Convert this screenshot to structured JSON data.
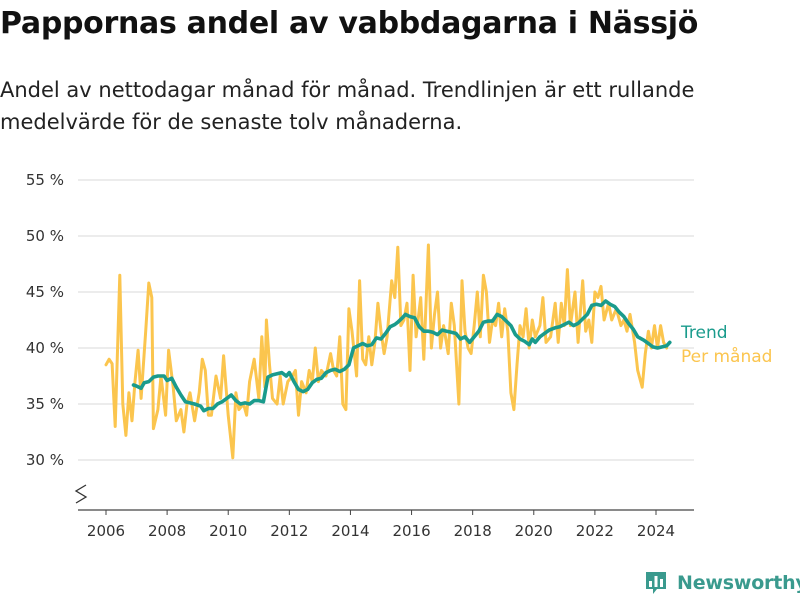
{
  "header": {
    "title": "Pappornas andel av vabbdagarna i Nässjö",
    "subtitle": "Andel av nettodagar månad för månad. Trendlinjen är ett rullande medelvärde för de senaste tolv månaderna."
  },
  "brand": {
    "name": "Newsworthy",
    "color": "#3a9a8e",
    "icon": "bar-chart-pin-icon"
  },
  "chart_data": {
    "type": "line",
    "x_unit": "year",
    "y_unit": "%",
    "ylim": [
      25,
      55
    ],
    "xlim": [
      2005.6,
      2025.1
    ],
    "y_ticks": [
      {
        "value": 30,
        "label": "30 %"
      },
      {
        "value": 35,
        "label": "35 %"
      },
      {
        "value": 40,
        "label": "40 %"
      },
      {
        "value": 45,
        "label": "45 %"
      },
      {
        "value": 50,
        "label": "50 %"
      },
      {
        "value": 55,
        "label": "55 %"
      }
    ],
    "x_ticks": [
      {
        "value": 2006,
        "label": "2006"
      },
      {
        "value": 2008,
        "label": "2008"
      },
      {
        "value": 2010,
        "label": "2010"
      },
      {
        "value": 2012,
        "label": "2012"
      },
      {
        "value": 2014,
        "label": "2014"
      },
      {
        "value": 2016,
        "label": "2016"
      },
      {
        "value": 2018,
        "label": "2018"
      },
      {
        "value": 2020,
        "label": "2020"
      },
      {
        "value": 2022,
        "label": "2022"
      },
      {
        "value": 2024,
        "label": "2024"
      }
    ],
    "grid": true,
    "axis_break": true,
    "series": [
      {
        "name": "Per månad",
        "color": "#fbc54e",
        "points": [
          [
            2006.0,
            38.5
          ],
          [
            2006.1,
            39.0
          ],
          [
            2006.2,
            38.6
          ],
          [
            2006.3,
            33.0
          ],
          [
            2006.45,
            46.5
          ],
          [
            2006.55,
            35.0
          ],
          [
            2006.65,
            32.2
          ],
          [
            2006.75,
            36.0
          ],
          [
            2006.85,
            33.5
          ],
          [
            2006.95,
            37.0
          ],
          [
            2007.05,
            39.8
          ],
          [
            2007.15,
            35.5
          ],
          [
            2007.3,
            41.5
          ],
          [
            2007.4,
            45.8
          ],
          [
            2007.5,
            44.5
          ],
          [
            2007.55,
            32.8
          ],
          [
            2007.7,
            34.5
          ],
          [
            2007.8,
            37.5
          ],
          [
            2007.95,
            34.0
          ],
          [
            2008.05,
            39.8
          ],
          [
            2008.2,
            36.5
          ],
          [
            2008.3,
            33.5
          ],
          [
            2008.45,
            34.5
          ],
          [
            2008.55,
            32.5
          ],
          [
            2008.65,
            35.0
          ],
          [
            2008.75,
            36.0
          ],
          [
            2008.9,
            33.5
          ],
          [
            2009.05,
            36.0
          ],
          [
            2009.15,
            39.0
          ],
          [
            2009.25,
            38.0
          ],
          [
            2009.35,
            34.0
          ],
          [
            2009.45,
            34.0
          ],
          [
            2009.6,
            37.5
          ],
          [
            2009.75,
            35.5
          ],
          [
            2009.85,
            39.3
          ],
          [
            2010.0,
            34.0
          ],
          [
            2010.15,
            30.2
          ],
          [
            2010.25,
            36.0
          ],
          [
            2010.35,
            34.5
          ],
          [
            2010.5,
            35.0
          ],
          [
            2010.6,
            34.0
          ],
          [
            2010.7,
            37.0
          ],
          [
            2010.85,
            39.0
          ],
          [
            2011.0,
            35.5
          ],
          [
            2011.1,
            41.0
          ],
          [
            2011.2,
            36.5
          ],
          [
            2011.25,
            42.5
          ],
          [
            2011.35,
            38.5
          ],
          [
            2011.45,
            35.5
          ],
          [
            2011.6,
            35.0
          ],
          [
            2011.7,
            37.5
          ],
          [
            2011.8,
            35.0
          ],
          [
            2011.95,
            37.0
          ],
          [
            2012.1,
            37.5
          ],
          [
            2012.2,
            38.0
          ],
          [
            2012.3,
            34.0
          ],
          [
            2012.4,
            37.0
          ],
          [
            2012.55,
            36.0
          ],
          [
            2012.65,
            38.0
          ],
          [
            2012.75,
            37.0
          ],
          [
            2012.85,
            40.0
          ],
          [
            2012.95,
            37.0
          ],
          [
            2013.05,
            38.0
          ],
          [
            2013.2,
            37.5
          ],
          [
            2013.35,
            39.5
          ],
          [
            2013.45,
            38.0
          ],
          [
            2013.55,
            37.5
          ],
          [
            2013.65,
            41.0
          ],
          [
            2013.75,
            35.0
          ],
          [
            2013.85,
            34.5
          ],
          [
            2013.95,
            43.5
          ],
          [
            2014.05,
            41.5
          ],
          [
            2014.2,
            37.5
          ],
          [
            2014.3,
            46.0
          ],
          [
            2014.4,
            39.0
          ],
          [
            2014.5,
            38.5
          ],
          [
            2014.6,
            41.0
          ],
          [
            2014.7,
            38.5
          ],
          [
            2014.8,
            40.5
          ],
          [
            2014.9,
            44.0
          ],
          [
            2015.0,
            41.5
          ],
          [
            2015.1,
            39.5
          ],
          [
            2015.2,
            41.0
          ],
          [
            2015.35,
            46.0
          ],
          [
            2015.45,
            44.5
          ],
          [
            2015.55,
            49.0
          ],
          [
            2015.65,
            42.0
          ],
          [
            2015.75,
            42.5
          ],
          [
            2015.85,
            44.0
          ],
          [
            2015.95,
            38.0
          ],
          [
            2016.05,
            46.5
          ],
          [
            2016.15,
            41.0
          ],
          [
            2016.3,
            44.5
          ],
          [
            2016.4,
            39.0
          ],
          [
            2016.55,
            49.2
          ],
          [
            2016.65,
            40.0
          ],
          [
            2016.75,
            43.0
          ],
          [
            2016.85,
            45.0
          ],
          [
            2016.95,
            40.0
          ],
          [
            2017.05,
            42.0
          ],
          [
            2017.2,
            39.5
          ],
          [
            2017.3,
            44.0
          ],
          [
            2017.4,
            42.0
          ],
          [
            2017.55,
            35.0
          ],
          [
            2017.65,
            46.0
          ],
          [
            2017.75,
            41.5
          ],
          [
            2017.85,
            40.0
          ],
          [
            2017.95,
            39.5
          ],
          [
            2018.05,
            42.0
          ],
          [
            2018.15,
            45.0
          ],
          [
            2018.25,
            41.0
          ],
          [
            2018.35,
            46.5
          ],
          [
            2018.45,
            45.0
          ],
          [
            2018.55,
            40.5
          ],
          [
            2018.65,
            42.5
          ],
          [
            2018.75,
            42.0
          ],
          [
            2018.85,
            44.0
          ],
          [
            2018.95,
            41.0
          ],
          [
            2019.05,
            43.5
          ],
          [
            2019.15,
            41.5
          ],
          [
            2019.25,
            36.0
          ],
          [
            2019.35,
            34.5
          ],
          [
            2019.45,
            38.5
          ],
          [
            2019.55,
            42.0
          ],
          [
            2019.65,
            41.0
          ],
          [
            2019.75,
            43.5
          ],
          [
            2019.85,
            40.0
          ],
          [
            2019.95,
            42.5
          ],
          [
            2020.05,
            41.0
          ],
          [
            2020.2,
            42.0
          ],
          [
            2020.3,
            44.5
          ],
          [
            2020.4,
            40.5
          ],
          [
            2020.55,
            41.0
          ],
          [
            2020.7,
            44.0
          ],
          [
            2020.8,
            40.5
          ],
          [
            2020.9,
            44.0
          ],
          [
            2021.0,
            42.0
          ],
          [
            2021.1,
            47.0
          ],
          [
            2021.2,
            42.0
          ],
          [
            2021.35,
            45.0
          ],
          [
            2021.45,
            40.5
          ],
          [
            2021.6,
            46.0
          ],
          [
            2021.7,
            41.5
          ],
          [
            2021.8,
            42.5
          ],
          [
            2021.9,
            40.5
          ],
          [
            2022.0,
            45.0
          ],
          [
            2022.1,
            44.5
          ],
          [
            2022.2,
            45.5
          ],
          [
            2022.3,
            42.5
          ],
          [
            2022.45,
            44.0
          ],
          [
            2022.55,
            42.5
          ],
          [
            2022.7,
            43.5
          ],
          [
            2022.85,
            42.0
          ],
          [
            2022.95,
            42.5
          ],
          [
            2023.05,
            41.5
          ],
          [
            2023.15,
            43.0
          ],
          [
            2023.3,
            40.5
          ],
          [
            2023.4,
            38.0
          ],
          [
            2023.55,
            36.5
          ],
          [
            2023.65,
            39.5
          ],
          [
            2023.75,
            41.5
          ],
          [
            2023.85,
            40.0
          ],
          [
            2023.95,
            42.0
          ],
          [
            2024.05,
            40.0
          ],
          [
            2024.15,
            42.0
          ],
          [
            2024.25,
            40.5
          ],
          [
            2024.35,
            40.0
          ]
        ]
      },
      {
        "name": "Trend",
        "color": "#1a9b8c",
        "points": [
          [
            2006.9,
            36.7
          ],
          [
            2007.0,
            36.6
          ],
          [
            2007.15,
            36.4
          ],
          [
            2007.25,
            36.9
          ],
          [
            2007.4,
            37.0
          ],
          [
            2007.55,
            37.4
          ],
          [
            2007.7,
            37.5
          ],
          [
            2007.9,
            37.5
          ],
          [
            2008.0,
            37.1
          ],
          [
            2008.15,
            37.3
          ],
          [
            2008.3,
            36.5
          ],
          [
            2008.45,
            35.8
          ],
          [
            2008.6,
            35.2
          ],
          [
            2008.75,
            35.1
          ],
          [
            2008.9,
            35.0
          ],
          [
            2009.1,
            34.8
          ],
          [
            2009.2,
            34.4
          ],
          [
            2009.35,
            34.6
          ],
          [
            2009.5,
            34.6
          ],
          [
            2009.65,
            35.0
          ],
          [
            2009.8,
            35.2
          ],
          [
            2009.95,
            35.5
          ],
          [
            2010.1,
            35.8
          ],
          [
            2010.25,
            35.3
          ],
          [
            2010.4,
            35.0
          ],
          [
            2010.55,
            35.1
          ],
          [
            2010.7,
            35.0
          ],
          [
            2010.85,
            35.3
          ],
          [
            2011.0,
            35.3
          ],
          [
            2011.15,
            35.2
          ],
          [
            2011.3,
            37.4
          ],
          [
            2011.45,
            37.6
          ],
          [
            2011.6,
            37.7
          ],
          [
            2011.75,
            37.8
          ],
          [
            2011.9,
            37.5
          ],
          [
            2012.0,
            37.8
          ],
          [
            2012.15,
            37.0
          ],
          [
            2012.3,
            36.3
          ],
          [
            2012.45,
            36.1
          ],
          [
            2012.6,
            36.3
          ],
          [
            2012.75,
            36.9
          ],
          [
            2012.9,
            37.2
          ],
          [
            2013.05,
            37.3
          ],
          [
            2013.2,
            37.8
          ],
          [
            2013.35,
            38.0
          ],
          [
            2013.5,
            38.1
          ],
          [
            2013.65,
            37.9
          ],
          [
            2013.8,
            38.1
          ],
          [
            2013.95,
            38.5
          ],
          [
            2014.1,
            40.0
          ],
          [
            2014.25,
            40.2
          ],
          [
            2014.4,
            40.4
          ],
          [
            2014.55,
            40.2
          ],
          [
            2014.7,
            40.3
          ],
          [
            2014.85,
            40.9
          ],
          [
            2015.0,
            40.8
          ],
          [
            2015.15,
            41.3
          ],
          [
            2015.3,
            41.9
          ],
          [
            2015.45,
            42.1
          ],
          [
            2015.55,
            42.3
          ],
          [
            2015.7,
            42.7
          ],
          [
            2015.8,
            43.0
          ],
          [
            2015.95,
            42.8
          ],
          [
            2016.1,
            42.7
          ],
          [
            2016.25,
            41.9
          ],
          [
            2016.4,
            41.5
          ],
          [
            2016.55,
            41.5
          ],
          [
            2016.7,
            41.4
          ],
          [
            2016.85,
            41.2
          ],
          [
            2017.0,
            41.6
          ],
          [
            2017.15,
            41.5
          ],
          [
            2017.3,
            41.4
          ],
          [
            2017.45,
            41.3
          ],
          [
            2017.6,
            40.8
          ],
          [
            2017.75,
            41.0
          ],
          [
            2017.9,
            40.5
          ],
          [
            2018.05,
            41.0
          ],
          [
            2018.2,
            41.5
          ],
          [
            2018.35,
            42.3
          ],
          [
            2018.5,
            42.4
          ],
          [
            2018.65,
            42.4
          ],
          [
            2018.8,
            43.0
          ],
          [
            2018.95,
            42.8
          ],
          [
            2019.1,
            42.4
          ],
          [
            2019.25,
            42.0
          ],
          [
            2019.4,
            41.2
          ],
          [
            2019.55,
            40.8
          ],
          [
            2019.7,
            40.6
          ],
          [
            2019.85,
            40.3
          ],
          [
            2019.95,
            40.8
          ],
          [
            2020.05,
            40.5
          ],
          [
            2020.2,
            41.0
          ],
          [
            2020.35,
            41.3
          ],
          [
            2020.5,
            41.6
          ],
          [
            2020.7,
            41.8
          ],
          [
            2020.85,
            41.9
          ],
          [
            2021.0,
            42.1
          ],
          [
            2021.15,
            42.3
          ],
          [
            2021.3,
            42.0
          ],
          [
            2021.45,
            42.2
          ],
          [
            2021.6,
            42.6
          ],
          [
            2021.75,
            43.0
          ],
          [
            2021.9,
            43.8
          ],
          [
            2022.05,
            43.9
          ],
          [
            2022.2,
            43.8
          ],
          [
            2022.35,
            44.2
          ],
          [
            2022.5,
            43.9
          ],
          [
            2022.65,
            43.7
          ],
          [
            2022.8,
            43.2
          ],
          [
            2022.95,
            42.8
          ],
          [
            2023.1,
            42.2
          ],
          [
            2023.25,
            41.7
          ],
          [
            2023.4,
            41.0
          ],
          [
            2023.6,
            40.7
          ],
          [
            2023.75,
            40.4
          ],
          [
            2023.9,
            40.1
          ],
          [
            2024.05,
            40.0
          ],
          [
            2024.2,
            40.1
          ],
          [
            2024.35,
            40.2
          ],
          [
            2024.45,
            40.5
          ]
        ]
      }
    ]
  }
}
